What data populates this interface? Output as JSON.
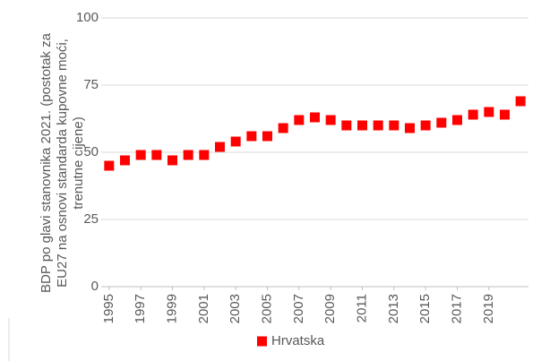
{
  "chart_data": {
    "type": "scatter",
    "y_label": "BDP po glavi stanovnika 2021. (postotak za EU27 na osnovi standarda kupovne moći, trenutne cijene)",
    "x": [
      1995,
      1996,
      1997,
      1998,
      1999,
      2000,
      2001,
      2002,
      2003,
      2004,
      2005,
      2006,
      2007,
      2008,
      2009,
      2010,
      2011,
      2012,
      2013,
      2014,
      2015,
      2016,
      2017,
      2018,
      2019,
      2020,
      2021
    ],
    "series": [
      {
        "name": "Hrvatska",
        "color": "#ff0000",
        "values": [
          45,
          47,
          49,
          49,
          47,
          49,
          49,
          52,
          54,
          56,
          56,
          59,
          62,
          63,
          62,
          60,
          60,
          60,
          60,
          59,
          60,
          61,
          62,
          64,
          65,
          64,
          69
        ]
      }
    ],
    "xlim": [
      1994.5,
      2021.5
    ],
    "xticks": [
      1995,
      1997,
      1999,
      2001,
      2003,
      2005,
      2007,
      2009,
      2011,
      2013,
      2015,
      2017,
      2019
    ],
    "ylim": [
      0,
      100
    ],
    "yticks": [
      0,
      25,
      50,
      75,
      100
    ],
    "grid": true,
    "legend": "bottom"
  }
}
